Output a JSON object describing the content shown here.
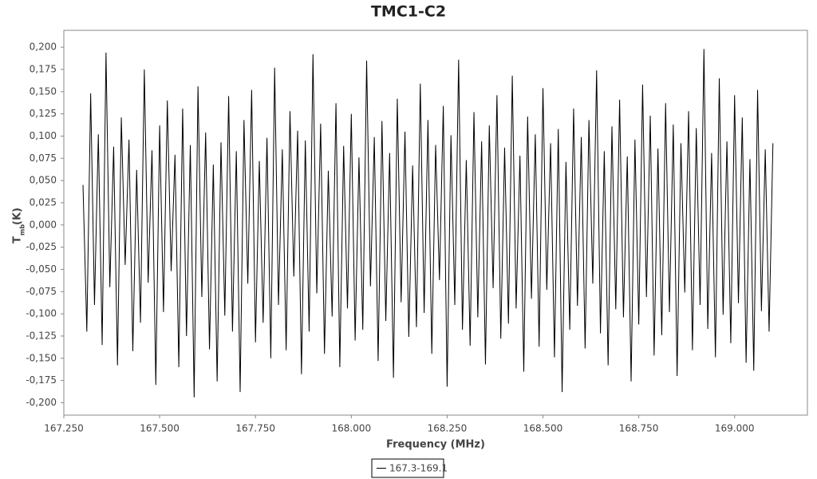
{
  "chart_data": {
    "type": "line",
    "title": "TMC1-C2",
    "x_label": "Frequency (MHz)",
    "y_label": {
      "main": "T",
      "sub": "mb",
      "unit": "(K)"
    },
    "xlim": [
      167.25,
      169.19
    ],
    "ylim": [
      -0.214,
      0.219
    ],
    "xticks": [
      {
        "value": 167.25,
        "label": "167.250"
      },
      {
        "value": 167.5,
        "label": "167.500"
      },
      {
        "value": 167.75,
        "label": "167.750"
      },
      {
        "value": 168,
        "label": "168.000"
      },
      {
        "value": 168.25,
        "label": "168.250"
      },
      {
        "value": 168.5,
        "label": "168.500"
      },
      {
        "value": 168.75,
        "label": "168.750"
      },
      {
        "value": 169,
        "label": "169.000"
      }
    ],
    "yticks": [
      {
        "value": 0.2,
        "label": "0,200"
      },
      {
        "value": 0.175,
        "label": "0,175"
      },
      {
        "value": 0.15,
        "label": "0,150"
      },
      {
        "value": 0.125,
        "label": "0,125"
      },
      {
        "value": 0.1,
        "label": "0,100"
      },
      {
        "value": 0.075,
        "label": "0,075"
      },
      {
        "value": 0.05,
        "label": "0,050"
      },
      {
        "value": 0.025,
        "label": "0,025"
      },
      {
        "value": 0,
        "label": "0,000"
      },
      {
        "value": -0.025,
        "label": "-0,025"
      },
      {
        "value": -0.05,
        "label": "-0,050"
      },
      {
        "value": -0.075,
        "label": "-0,075"
      },
      {
        "value": -0.1,
        "label": "-0,100"
      },
      {
        "value": -0.125,
        "label": "-0,125"
      },
      {
        "value": -0.15,
        "label": "-0,150"
      },
      {
        "value": -0.175,
        "label": "-0,175"
      },
      {
        "value": -0.2,
        "label": "-0,200"
      }
    ],
    "x": [
      167.3,
      167.31,
      167.32,
      167.33,
      167.34,
      167.35,
      167.36,
      167.37,
      167.38,
      167.39,
      167.4,
      167.41,
      167.42,
      167.43,
      167.44,
      167.45,
      167.46,
      167.47,
      167.48,
      167.49,
      167.5,
      167.51,
      167.52,
      167.53,
      167.54,
      167.55,
      167.56,
      167.57,
      167.58,
      167.59,
      167.6,
      167.61,
      167.62,
      167.63,
      167.64,
      167.65,
      167.66,
      167.67,
      167.68,
      167.69,
      167.7,
      167.71,
      167.72,
      167.73,
      167.74,
      167.75,
      167.76,
      167.77,
      167.78,
      167.79,
      167.8,
      167.81,
      167.82,
      167.83,
      167.84,
      167.85,
      167.86,
      167.87,
      167.88,
      167.89,
      167.9,
      167.91,
      167.92,
      167.93,
      167.94,
      167.95,
      167.96,
      167.97,
      167.98,
      167.99,
      168.0,
      168.01,
      168.02,
      168.03,
      168.04,
      168.05,
      168.06,
      168.07,
      168.08,
      168.09,
      168.1,
      168.11,
      168.12,
      168.13,
      168.14,
      168.15,
      168.16,
      168.17,
      168.18,
      168.19,
      168.2,
      168.21,
      168.22,
      168.23,
      168.24,
      168.25,
      168.26,
      168.27,
      168.28,
      168.29,
      168.3,
      168.31,
      168.32,
      168.33,
      168.34,
      168.35,
      168.36,
      168.37,
      168.38,
      168.39,
      168.4,
      168.41,
      168.42,
      168.43,
      168.44,
      168.45,
      168.46,
      168.47,
      168.48,
      168.49,
      168.5,
      168.51,
      168.52,
      168.53,
      168.54,
      168.55,
      168.56,
      168.57,
      168.58,
      168.59,
      168.6,
      168.61,
      168.62,
      168.63,
      168.64,
      168.65,
      168.66,
      168.67,
      168.68,
      168.69,
      168.7,
      168.71,
      168.72,
      168.73,
      168.74,
      168.75,
      168.76,
      168.77,
      168.78,
      168.79,
      168.8,
      168.81,
      168.82,
      168.83,
      168.84,
      168.85,
      168.86,
      168.87,
      168.88,
      168.89,
      168.9,
      168.91,
      168.92,
      168.93,
      168.94,
      168.95,
      168.96,
      168.97,
      168.98,
      168.99,
      169.0,
      169.01,
      169.02,
      169.03,
      169.04,
      169.05,
      169.06,
      169.07,
      169.08,
      169.09,
      169.1
    ],
    "series": [
      {
        "name": "167.3-169.1",
        "color": "#000000",
        "values": [
          0.045,
          -0.12,
          0.148,
          -0.09,
          0.102,
          -0.135,
          0.194,
          -0.07,
          0.088,
          -0.158,
          0.121,
          -0.045,
          0.096,
          -0.142,
          0.062,
          -0.11,
          0.175,
          -0.065,
          0.084,
          -0.18,
          0.112,
          -0.098,
          0.14,
          -0.052,
          0.079,
          -0.16,
          0.131,
          -0.125,
          0.09,
          -0.194,
          0.156,
          -0.081,
          0.104,
          -0.14,
          0.068,
          -0.176,
          0.093,
          -0.102,
          0.145,
          -0.12,
          0.083,
          -0.188,
          0.118,
          -0.066,
          0.152,
          -0.132,
          0.072,
          -0.11,
          0.098,
          -0.15,
          0.177,
          -0.09,
          0.085,
          -0.141,
          0.128,
          -0.058,
          0.106,
          -0.168,
          0.095,
          -0.12,
          0.192,
          -0.077,
          0.114,
          -0.145,
          0.061,
          -0.103,
          0.137,
          -0.16,
          0.089,
          -0.094,
          0.125,
          -0.13,
          0.076,
          -0.118,
          0.185,
          -0.069,
          0.099,
          -0.153,
          0.117,
          -0.108,
          0.081,
          -0.172,
          0.142,
          -0.087,
          0.105,
          -0.126,
          0.067,
          -0.115,
          0.159,
          -0.099,
          0.118,
          -0.145,
          0.09,
          -0.062,
          0.134,
          -0.182,
          0.101,
          -0.09,
          0.186,
          -0.118,
          0.073,
          -0.136,
          0.127,
          -0.104,
          0.094,
          -0.157,
          0.112,
          -0.071,
          0.146,
          -0.128,
          0.087,
          -0.111,
          0.168,
          -0.094,
          0.078,
          -0.165,
          0.122,
          -0.083,
          0.102,
          -0.137,
          0.154,
          -0.073,
          0.092,
          -0.149,
          0.108,
          -0.188,
          0.071,
          -0.118,
          0.131,
          -0.091,
          0.099,
          -0.139,
          0.118,
          -0.066,
          0.174,
          -0.122,
          0.083,
          -0.158,
          0.111,
          -0.095,
          0.141,
          -0.104,
          0.077,
          -0.176,
          0.096,
          -0.112,
          0.158,
          -0.081,
          0.123,
          -0.147,
          0.086,
          -0.124,
          0.137,
          -0.098,
          0.113,
          -0.17,
          0.092,
          -0.076,
          0.128,
          -0.141,
          0.109,
          -0.09,
          0.198,
          -0.117,
          0.081,
          -0.149,
          0.165,
          -0.101,
          0.094,
          -0.133,
          0.146,
          -0.088,
          0.121,
          -0.155,
          0.074,
          -0.164,
          0.152,
          -0.097,
          0.085,
          -0.12,
          0.092
        ]
      }
    ]
  }
}
